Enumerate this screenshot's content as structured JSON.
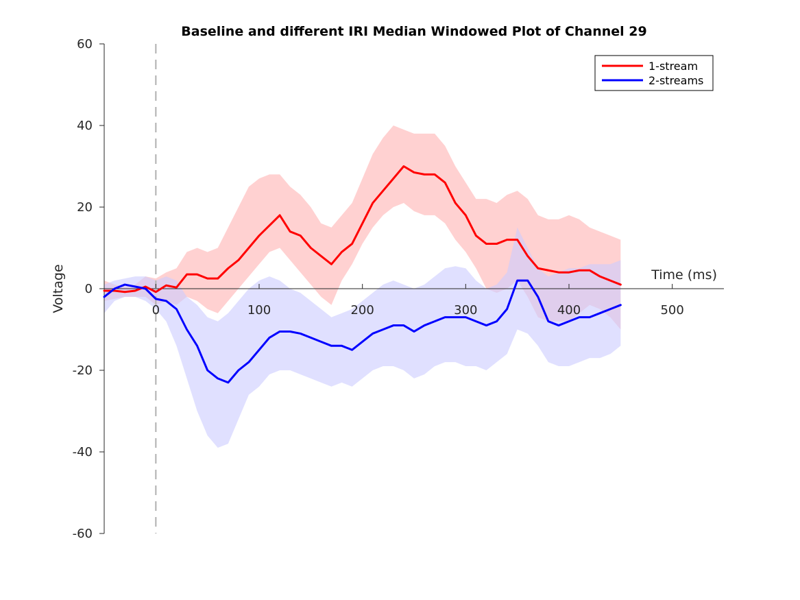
{
  "chart_data": {
    "type": "line",
    "title": "Baseline and different IRI Median Windowed Plot of Channel 29",
    "xlabel": "Time (ms)",
    "ylabel": "Voltage",
    "xlim": [
      -50,
      550
    ],
    "ylim": [
      -60,
      60
    ],
    "x_ticks": [
      "0",
      "100",
      "200",
      "300",
      "400",
      "500"
    ],
    "y_ticks": [
      "60",
      "40",
      "20",
      "0",
      "-20",
      "-40",
      "-60"
    ],
    "onset_marker_x": 0,
    "legend_position": "top-right",
    "series": [
      {
        "name": "1-stream",
        "color": "#ff0000",
        "band_color": "#ffcccc",
        "points": [
          [
            -50,
            -0.5
          ],
          [
            -40,
            -0.5
          ],
          [
            -30,
            -0.8
          ],
          [
            -20,
            -0.5
          ],
          [
            -10,
            0.5
          ],
          [
            0,
            -0.8
          ],
          [
            10,
            0.8
          ],
          [
            20,
            0.3
          ],
          [
            30,
            3.5
          ],
          [
            40,
            3.5
          ],
          [
            50,
            2.5
          ],
          [
            60,
            2.5
          ],
          [
            70,
            5
          ],
          [
            80,
            7
          ],
          [
            90,
            10
          ],
          [
            100,
            13
          ],
          [
            110,
            15.5
          ],
          [
            120,
            18
          ],
          [
            130,
            14
          ],
          [
            140,
            13
          ],
          [
            150,
            10
          ],
          [
            160,
            8
          ],
          [
            170,
            6
          ],
          [
            180,
            9
          ],
          [
            190,
            11
          ],
          [
            200,
            16
          ],
          [
            210,
            21
          ],
          [
            220,
            24
          ],
          [
            230,
            27
          ],
          [
            240,
            30
          ],
          [
            250,
            28.5
          ],
          [
            260,
            28
          ],
          [
            270,
            28
          ],
          [
            280,
            26
          ],
          [
            290,
            21
          ],
          [
            300,
            18
          ],
          [
            310,
            13
          ],
          [
            320,
            11
          ],
          [
            330,
            11
          ],
          [
            340,
            12
          ],
          [
            350,
            12
          ],
          [
            360,
            8
          ],
          [
            370,
            5
          ],
          [
            380,
            4.5
          ],
          [
            390,
            4
          ],
          [
            400,
            4
          ],
          [
            410,
            4.5
          ],
          [
            420,
            4.5
          ],
          [
            430,
            3
          ],
          [
            440,
            2
          ],
          [
            450,
            1
          ]
        ],
        "upper": [
          [
            -50,
            2
          ],
          [
            -40,
            1
          ],
          [
            -30,
            0.5
          ],
          [
            -20,
            1
          ],
          [
            -10,
            3
          ],
          [
            0,
            2.5
          ],
          [
            10,
            4
          ],
          [
            20,
            5
          ],
          [
            30,
            9
          ],
          [
            40,
            10
          ],
          [
            50,
            9
          ],
          [
            60,
            10
          ],
          [
            70,
            15
          ],
          [
            80,
            20
          ],
          [
            90,
            25
          ],
          [
            100,
            27
          ],
          [
            110,
            28
          ],
          [
            120,
            28
          ],
          [
            130,
            25
          ],
          [
            140,
            23
          ],
          [
            150,
            20
          ],
          [
            160,
            16
          ],
          [
            170,
            15
          ],
          [
            180,
            18
          ],
          [
            190,
            21
          ],
          [
            200,
            27
          ],
          [
            210,
            33
          ],
          [
            220,
            37
          ],
          [
            230,
            40
          ],
          [
            240,
            39
          ],
          [
            250,
            38
          ],
          [
            260,
            38
          ],
          [
            270,
            38
          ],
          [
            280,
            35
          ],
          [
            290,
            30
          ],
          [
            300,
            26
          ],
          [
            310,
            22
          ],
          [
            320,
            22
          ],
          [
            330,
            21
          ],
          [
            340,
            23
          ],
          [
            350,
            24
          ],
          [
            360,
            22
          ],
          [
            370,
            18
          ],
          [
            380,
            17
          ],
          [
            390,
            17
          ],
          [
            400,
            18
          ],
          [
            410,
            17
          ],
          [
            420,
            15
          ],
          [
            430,
            14
          ],
          [
            440,
            13
          ],
          [
            450,
            12
          ]
        ],
        "lower": [
          [
            -50,
            -3
          ],
          [
            -40,
            -2.5
          ],
          [
            -30,
            -2
          ],
          [
            -20,
            -2
          ],
          [
            -10,
            -2
          ],
          [
            0,
            -4
          ],
          [
            10,
            -3
          ],
          [
            20,
            -4
          ],
          [
            30,
            -2
          ],
          [
            40,
            -3
          ],
          [
            50,
            -5
          ],
          [
            60,
            -6
          ],
          [
            70,
            -3
          ],
          [
            80,
            0
          ],
          [
            90,
            3
          ],
          [
            100,
            6
          ],
          [
            110,
            9
          ],
          [
            120,
            10
          ],
          [
            130,
            7
          ],
          [
            140,
            4
          ],
          [
            150,
            1
          ],
          [
            160,
            -2
          ],
          [
            170,
            -4
          ],
          [
            180,
            2
          ],
          [
            190,
            6
          ],
          [
            200,
            11
          ],
          [
            210,
            15
          ],
          [
            220,
            18
          ],
          [
            230,
            20
          ],
          [
            240,
            21
          ],
          [
            250,
            19
          ],
          [
            260,
            18
          ],
          [
            270,
            18
          ],
          [
            280,
            16
          ],
          [
            290,
            12
          ],
          [
            300,
            9
          ],
          [
            310,
            5
          ],
          [
            320,
            0
          ],
          [
            330,
            -1
          ],
          [
            340,
            0
          ],
          [
            350,
            2
          ],
          [
            360,
            -2
          ],
          [
            370,
            -7
          ],
          [
            380,
            -8
          ],
          [
            390,
            -8
          ],
          [
            400,
            -8
          ],
          [
            410,
            -6
          ],
          [
            420,
            -4
          ],
          [
            430,
            -5
          ],
          [
            440,
            -7
          ],
          [
            450,
            -10
          ]
        ]
      },
      {
        "name": "2-streams",
        "color": "#0000ff",
        "band_color": "#ccccff",
        "points": [
          [
            -50,
            -2
          ],
          [
            -40,
            0
          ],
          [
            -30,
            1
          ],
          [
            -20,
            0.5
          ],
          [
            -10,
            0
          ],
          [
            0,
            -2.5
          ],
          [
            10,
            -3
          ],
          [
            20,
            -5
          ],
          [
            30,
            -10
          ],
          [
            40,
            -14
          ],
          [
            50,
            -20
          ],
          [
            60,
            -22
          ],
          [
            70,
            -23
          ],
          [
            80,
            -20
          ],
          [
            90,
            -18
          ],
          [
            100,
            -15
          ],
          [
            110,
            -12
          ],
          [
            120,
            -10.5
          ],
          [
            130,
            -10.5
          ],
          [
            140,
            -11
          ],
          [
            150,
            -12
          ],
          [
            160,
            -13
          ],
          [
            170,
            -14
          ],
          [
            180,
            -14
          ],
          [
            190,
            -15
          ],
          [
            200,
            -13
          ],
          [
            210,
            -11
          ],
          [
            220,
            -10
          ],
          [
            230,
            -9
          ],
          [
            240,
            -9
          ],
          [
            250,
            -10.5
          ],
          [
            260,
            -9
          ],
          [
            270,
            -8
          ],
          [
            280,
            -7
          ],
          [
            290,
            -7
          ],
          [
            300,
            -7
          ],
          [
            310,
            -8
          ],
          [
            320,
            -9
          ],
          [
            330,
            -8
          ],
          [
            340,
            -5
          ],
          [
            350,
            2
          ],
          [
            360,
            2
          ],
          [
            370,
            -2
          ],
          [
            380,
            -8
          ],
          [
            390,
            -9
          ],
          [
            400,
            -8
          ],
          [
            410,
            -7
          ],
          [
            420,
            -7
          ],
          [
            430,
            -6
          ],
          [
            440,
            -5
          ],
          [
            450,
            -4
          ]
        ],
        "upper": [
          [
            -50,
            1
          ],
          [
            -40,
            2
          ],
          [
            -30,
            2.5
          ],
          [
            -20,
            3
          ],
          [
            -10,
            3
          ],
          [
            0,
            2
          ],
          [
            10,
            3
          ],
          [
            20,
            2
          ],
          [
            30,
            -2
          ],
          [
            40,
            -4
          ],
          [
            50,
            -7
          ],
          [
            60,
            -8
          ],
          [
            70,
            -6
          ],
          [
            80,
            -3
          ],
          [
            90,
            0
          ],
          [
            100,
            2
          ],
          [
            110,
            3
          ],
          [
            120,
            2
          ],
          [
            130,
            0
          ],
          [
            140,
            -1
          ],
          [
            150,
            -3
          ],
          [
            160,
            -5
          ],
          [
            170,
            -7
          ],
          [
            180,
            -6
          ],
          [
            190,
            -5
          ],
          [
            200,
            -3
          ],
          [
            210,
            -1
          ],
          [
            220,
            1
          ],
          [
            230,
            2
          ],
          [
            240,
            1
          ],
          [
            250,
            0
          ],
          [
            260,
            1
          ],
          [
            270,
            3
          ],
          [
            280,
            5
          ],
          [
            290,
            5.5
          ],
          [
            300,
            5
          ],
          [
            310,
            2
          ],
          [
            320,
            0
          ],
          [
            330,
            1
          ],
          [
            340,
            4
          ],
          [
            350,
            15
          ],
          [
            360,
            10
          ],
          [
            370,
            5
          ],
          [
            380,
            3
          ],
          [
            390,
            4
          ],
          [
            400,
            5
          ],
          [
            410,
            5
          ],
          [
            420,
            6
          ],
          [
            430,
            6
          ],
          [
            440,
            6
          ],
          [
            450,
            7
          ]
        ],
        "lower": [
          [
            -50,
            -6
          ],
          [
            -40,
            -3
          ],
          [
            -30,
            -2
          ],
          [
            -20,
            -2
          ],
          [
            -10,
            -3
          ],
          [
            0,
            -5
          ],
          [
            10,
            -8
          ],
          [
            20,
            -14
          ],
          [
            30,
            -22
          ],
          [
            40,
            -30
          ],
          [
            50,
            -36
          ],
          [
            60,
            -39
          ],
          [
            70,
            -38
          ],
          [
            80,
            -32
          ],
          [
            90,
            -26
          ],
          [
            100,
            -24
          ],
          [
            110,
            -21
          ],
          [
            120,
            -20
          ],
          [
            130,
            -20
          ],
          [
            140,
            -21
          ],
          [
            150,
            -22
          ],
          [
            160,
            -23
          ],
          [
            170,
            -24
          ],
          [
            180,
            -23
          ],
          [
            190,
            -24
          ],
          [
            200,
            -22
          ],
          [
            210,
            -20
          ],
          [
            220,
            -19
          ],
          [
            230,
            -19
          ],
          [
            240,
            -20
          ],
          [
            250,
            -22
          ],
          [
            260,
            -21
          ],
          [
            270,
            -19
          ],
          [
            280,
            -18
          ],
          [
            290,
            -18
          ],
          [
            300,
            -19
          ],
          [
            310,
            -19
          ],
          [
            320,
            -20
          ],
          [
            330,
            -18
          ],
          [
            340,
            -16
          ],
          [
            350,
            -10
          ],
          [
            360,
            -11
          ],
          [
            370,
            -14
          ],
          [
            380,
            -18
          ],
          [
            390,
            -19
          ],
          [
            400,
            -19
          ],
          [
            410,
            -18
          ],
          [
            420,
            -17
          ],
          [
            430,
            -17
          ],
          [
            440,
            -16
          ],
          [
            450,
            -14
          ]
        ]
      }
    ]
  }
}
